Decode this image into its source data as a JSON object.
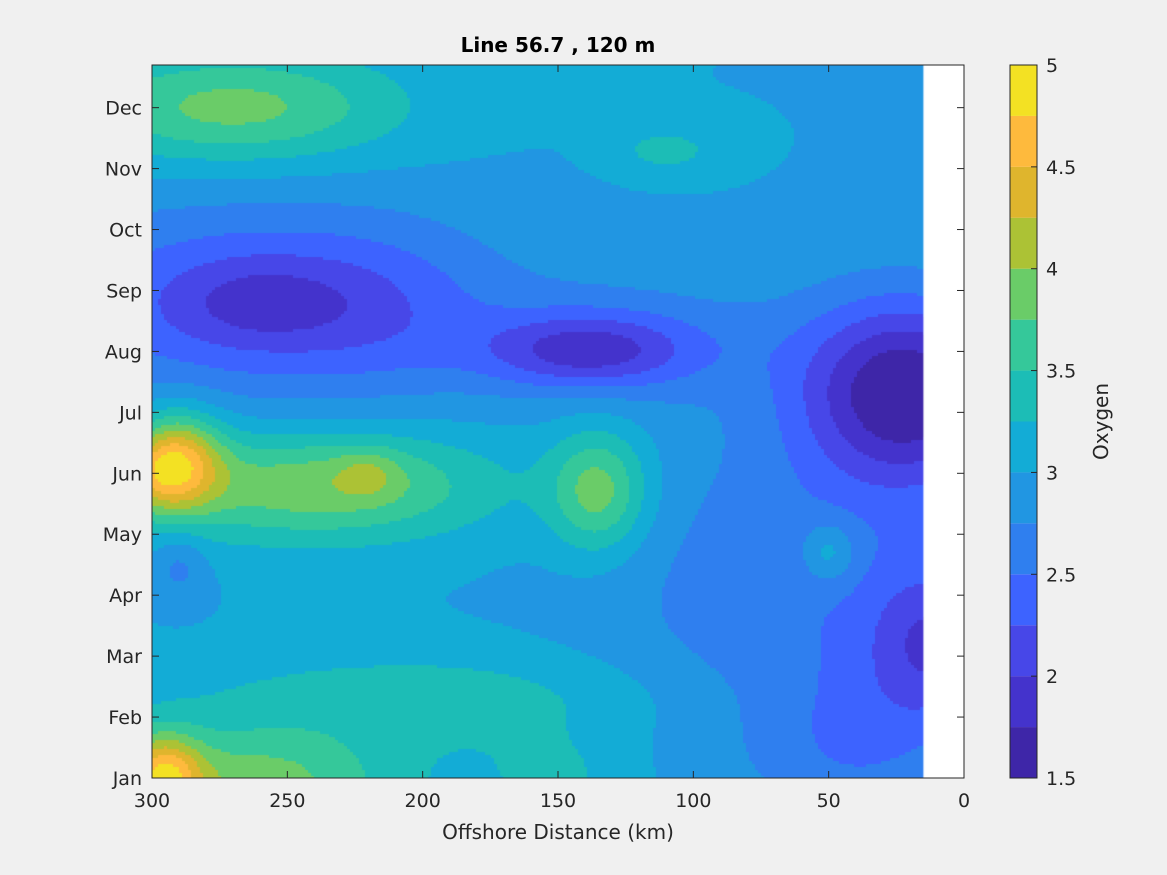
{
  "chart_data": {
    "type": "heatmap",
    "subtype": "filled-contour",
    "title": "Line 56.7 , 120 m",
    "xlabel": "Offshore Distance (km)",
    "ylabel": "",
    "xlim": [
      300,
      0
    ],
    "x_reversed": true,
    "x_ticks": [
      300,
      250,
      200,
      150,
      100,
      50,
      0
    ],
    "y_ticks": [
      "Jan",
      "Feb",
      "Mar",
      "Apr",
      "May",
      "Jun",
      "Jul",
      "Aug",
      "Sep",
      "Oct",
      "Nov",
      "Dec"
    ],
    "no_data_region_km": [
      0,
      15
    ],
    "colorbar": {
      "label": "Oxygen",
      "range": [
        1.5,
        5
      ],
      "tick_values": [
        1.5,
        2,
        2.5,
        3,
        3.5,
        4,
        4.5,
        5
      ],
      "tick_labels": [
        "1.5",
        "2",
        "2.5",
        "3",
        "3.5",
        "4",
        "4.5",
        "5"
      ],
      "levels": [
        1.5,
        1.75,
        2,
        2.25,
        2.5,
        2.75,
        3,
        3.25,
        3.5,
        3.75,
        4,
        4.25,
        4.5,
        4.75,
        5
      ],
      "colors": [
        "#3e26a8",
        "#4433cc",
        "#4747e8",
        "#3d63ff",
        "#2f7fef",
        "#2196e2",
        "#13acd6",
        "#1cbdb6",
        "#35c89a",
        "#6acc68",
        "#acc235",
        "#dfb52d",
        "#feba3d",
        "#f3e123"
      ]
    },
    "colors": {
      "figure_bg": "#f0f0f0",
      "axes_bg": "#ffffff",
      "axes_edge": "#262626"
    },
    "field": {
      "background": 3.0,
      "features": [
        {
          "km": 260,
          "month": 8.8,
          "dkm": 85,
          "dm": 1.6,
          "amp": -0.8
        },
        {
          "km": 260,
          "month": 8.8,
          "dkm": 32,
          "dm": 0.7,
          "amp": -0.35
        },
        {
          "km": 215,
          "month": 8.6,
          "dkm": 35,
          "dm": 1.2,
          "amp": -0.2
        },
        {
          "km": 140,
          "month": 8.0,
          "dkm": 38,
          "dm": 0.6,
          "amp": -0.85
        },
        {
          "km": 120,
          "month": 8.2,
          "dkm": 55,
          "dm": 1.0,
          "amp": -0.3
        },
        {
          "km": 20,
          "month": 7.3,
          "dkm": 38,
          "dm": 1.5,
          "amp": -1.3
        },
        {
          "km": 35,
          "month": 7.6,
          "dkm": 45,
          "dm": 1.6,
          "amp": -0.2
        },
        {
          "km": 10,
          "month": 3.2,
          "dkm": 25,
          "dm": 1.3,
          "amp": -0.8
        },
        {
          "km": 60,
          "month": 4.0,
          "dkm": 70,
          "dm": 2.8,
          "amp": -0.45
        },
        {
          "km": 240,
          "month": 5.8,
          "dkm": 65,
          "dm": 0.9,
          "amp": 0.95
        },
        {
          "km": 220,
          "month": 6.0,
          "dkm": 12,
          "dm": 0.4,
          "amp": 0.35
        },
        {
          "km": 290,
          "month": 6.2,
          "dkm": 16,
          "dm": 0.8,
          "amp": 1.3
        },
        {
          "km": 300,
          "month": 6.0,
          "dkm": 12,
          "dm": 0.6,
          "amp": 0.5
        },
        {
          "km": 135,
          "month": 5.7,
          "dkm": 18,
          "dm": 1.0,
          "amp": 0.9
        },
        {
          "km": 50,
          "month": 4.7,
          "dkm": 10,
          "dm": 0.5,
          "amp": 0.5
        },
        {
          "km": 265,
          "month": 0.9,
          "dkm": 55,
          "dm": 0.9,
          "amp": 0.9
        },
        {
          "km": 296,
          "month": 1.0,
          "dkm": 14,
          "dm": 0.7,
          "amp": 1.3
        },
        {
          "km": 270,
          "month": 12.0,
          "dkm": 60,
          "dm": 0.9,
          "amp": 0.85
        },
        {
          "km": 110,
          "month": 11.3,
          "dkm": 20,
          "dm": 0.4,
          "amp": 0.35
        },
        {
          "km": 200,
          "month": 2.3,
          "dkm": 90,
          "dm": 0.8,
          "amp": 0.4
        },
        {
          "km": 150,
          "month": 1.0,
          "dkm": 30,
          "dm": 0.8,
          "amp": 0.3
        },
        {
          "km": 40,
          "month": 1.5,
          "dkm": 35,
          "dm": 1.3,
          "amp": -0.35
        },
        {
          "km": 290,
          "month": 4.5,
          "dkm": 10,
          "dm": 0.6,
          "amp": -0.35
        }
      ]
    }
  }
}
